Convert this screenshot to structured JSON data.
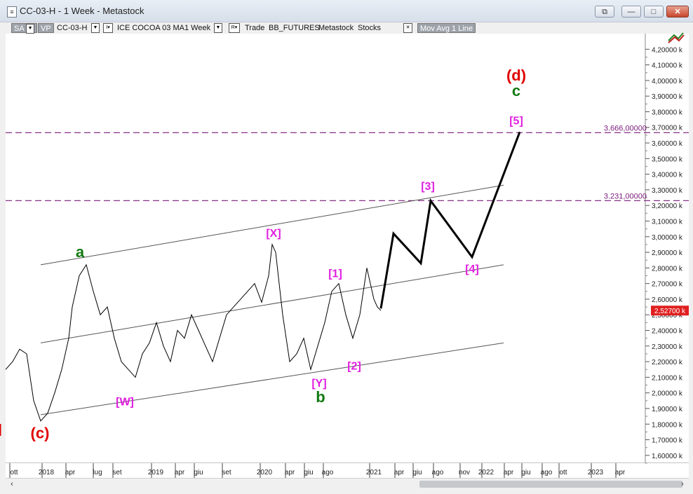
{
  "window": {
    "title": "CC-03-H - 1 Week - Metastock",
    "icon": "chart-document-icon",
    "buttons": {
      "restore_all": "⧉",
      "minimize": "—",
      "maximize": "□",
      "close": "✕"
    }
  },
  "toolbar": {
    "sa": "SA",
    "vp": "VP",
    "symbol": "CC-03-H",
    "dropdown_glyph": "▼",
    "i_label": "I▾",
    "instrument": "ICE COCOA 03 MA",
    "period": "1 Week",
    "r_label": "R▾",
    "mode": "Trade",
    "feed": "BB_FUTURES",
    "provider": "Metastock",
    "type": "Stocks",
    "close_glyph": "✕",
    "indicator": "Mov Avg 1 Line"
  },
  "colors": {
    "price": "#000000",
    "wave_green": "#127a12",
    "wave_red": "#e00000",
    "wave_magenta": "#e020e0",
    "level_line": "#7a1a7a",
    "channel": "#555555",
    "last_price_bg": "#e02020"
  },
  "chart_data": {
    "type": "line",
    "ylim": [
      1550,
      4300
    ],
    "y_ticks": [
      "4,20000 k",
      "4,10000 k",
      "4,00000 k",
      "3,90000 k",
      "3,80000 k",
      "3,70000 k",
      "3,60000 k",
      "3,50000 k",
      "3,40000 k",
      "3,30000 k",
      "3,20000 k",
      "3,10000 k",
      "3,00000 k",
      "2,90000 k",
      "2,80000 k",
      "2,70000 k",
      "2,60000 k",
      "2,50000 k",
      "2,40000 k",
      "2,30000 k",
      "2,20000 k",
      "2,10000 k",
      "2,00000 k",
      "1,90000 k",
      "1,80000 k",
      "1,70000 k",
      "1,60000 k"
    ],
    "x_ticks": [
      "ott",
      "2018",
      "apr",
      "lug",
      "set",
      "2019",
      "apr",
      "giu",
      "set",
      "2020",
      "apr",
      "giu",
      "ago",
      "2021",
      "apr",
      "giu",
      "ago",
      "nov",
      "2022",
      "apr",
      "giu",
      "ago",
      "ott",
      "2023",
      "apr"
    ],
    "last_price": {
      "value": 2527,
      "label": "2,52700 k"
    },
    "levels": [
      {
        "value": 3666,
        "label": "3.666,00000"
      },
      {
        "value": 3231,
        "label": "3.231,00000"
      }
    ],
    "price_series": [
      [
        0.0,
        2150
      ],
      [
        1.0,
        2200
      ],
      [
        2.0,
        2280
      ],
      [
        3.0,
        2250
      ],
      [
        4.0,
        1950
      ],
      [
        5.0,
        1820
      ],
      [
        6.0,
        1870
      ],
      [
        7.0,
        2000
      ],
      [
        8.0,
        2150
      ],
      [
        9.0,
        2350
      ],
      [
        9.5,
        2550
      ],
      [
        10.5,
        2750
      ],
      [
        11.5,
        2820
      ],
      [
        12.5,
        2650
      ],
      [
        13.5,
        2500
      ],
      [
        14.5,
        2550
      ],
      [
        15.5,
        2350
      ],
      [
        16.5,
        2200
      ],
      [
        17.5,
        2150
      ],
      [
        18.5,
        2100
      ],
      [
        19.5,
        2250
      ],
      [
        20.5,
        2320
      ],
      [
        21.5,
        2450
      ],
      [
        22.5,
        2300
      ],
      [
        23.5,
        2200
      ],
      [
        24.5,
        2400
      ],
      [
        25.5,
        2350
      ],
      [
        26.5,
        2500
      ],
      [
        27.5,
        2400
      ],
      [
        28.5,
        2300
      ],
      [
        29.5,
        2200
      ],
      [
        30.5,
        2350
      ],
      [
        31.5,
        2500
      ],
      [
        32.5,
        2550
      ],
      [
        33.5,
        2600
      ],
      [
        34.5,
        2650
      ],
      [
        35.5,
        2700
      ],
      [
        36.5,
        2580
      ],
      [
        37.5,
        2750
      ],
      [
        38.0,
        2950
      ],
      [
        38.5,
        2900
      ],
      [
        39.5,
        2500
      ],
      [
        40.5,
        2200
      ],
      [
        41.5,
        2250
      ],
      [
        42.5,
        2350
      ],
      [
        43.5,
        2150
      ],
      [
        44.5,
        2300
      ],
      [
        45.5,
        2450
      ],
      [
        46.5,
        2650
      ],
      [
        47.5,
        2700
      ],
      [
        48.5,
        2500
      ],
      [
        49.5,
        2350
      ],
      [
        50.5,
        2500
      ],
      [
        51.5,
        2800
      ],
      [
        52.0,
        2700
      ],
      [
        52.5,
        2600
      ],
      [
        53.0,
        2550
      ],
      [
        53.5,
        2527
      ]
    ],
    "projection": [
      [
        53.5,
        2540
      ],
      [
        55.3,
        3020
      ],
      [
        59.2,
        2830
      ],
      [
        60.6,
        3230
      ],
      [
        66.5,
        2870
      ],
      [
        73.3,
        3670
      ]
    ],
    "channel_lines": [
      [
        [
          5,
          1860
        ],
        [
          71,
          2320
        ]
      ],
      [
        [
          5,
          2320
        ],
        [
          71,
          2820
        ]
      ],
      [
        [
          5,
          2820
        ],
        [
          71,
          3330
        ]
      ]
    ],
    "wave_labels": [
      {
        "text": "(d)",
        "x": 72.8,
        "y": 4000,
        "color": "red",
        "size": "large"
      },
      {
        "text": "c",
        "x": 72.8,
        "y": 3900,
        "color": "green",
        "size": "large"
      },
      {
        "text": "[5]",
        "x": 72.8,
        "y": 3720,
        "color": "magenta",
        "size": "medium"
      },
      {
        "text": "[3]",
        "x": 60.2,
        "y": 3300,
        "color": "magenta",
        "size": "medium"
      },
      {
        "text": "[X]",
        "x": 38.2,
        "y": 3000,
        "color": "magenta",
        "size": "medium"
      },
      {
        "text": "a",
        "x": 10.6,
        "y": 2870,
        "color": "green",
        "size": "large"
      },
      {
        "text": "[1]",
        "x": 47.0,
        "y": 2740,
        "color": "magenta",
        "size": "medium"
      },
      {
        "text": "[4]",
        "x": 66.5,
        "y": 2770,
        "color": "magenta",
        "size": "medium"
      },
      {
        "text": "[2]",
        "x": 49.7,
        "y": 2150,
        "color": "magenta",
        "size": "medium"
      },
      {
        "text": "[Y]",
        "x": 44.7,
        "y": 2040,
        "color": "magenta",
        "size": "medium"
      },
      {
        "text": "b",
        "x": 44.9,
        "y": 1940,
        "color": "green",
        "size": "large"
      },
      {
        "text": "[W]",
        "x": 17.0,
        "y": 1920,
        "color": "magenta",
        "size": "medium"
      },
      {
        "text": "(c)",
        "x": 4.9,
        "y": 1710,
        "color": "red",
        "size": "large"
      }
    ]
  }
}
